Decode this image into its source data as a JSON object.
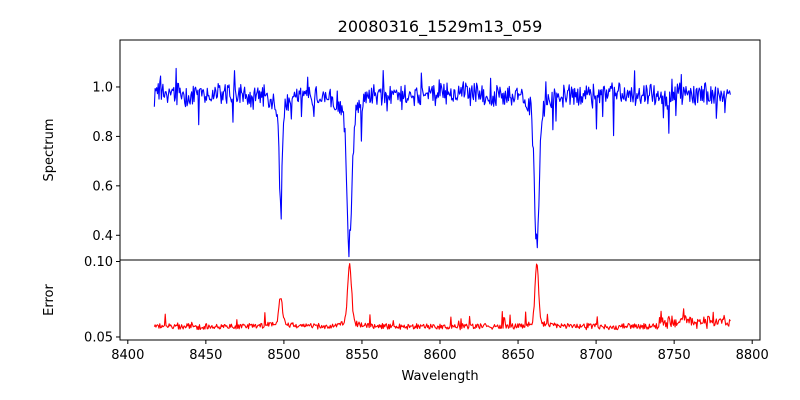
{
  "title": "20080316_1529m13_059",
  "chart_data": [
    {
      "type": "line",
      "panel": "spectrum",
      "ylabel": "Spectrum",
      "xlim": [
        8395,
        8805
      ],
      "ylim": [
        0.3,
        1.19
      ],
      "yticks": [
        0.4,
        0.6,
        0.8,
        1.0
      ],
      "ytick_labels": [
        "0.4",
        "0.6",
        "0.8",
        "1.0"
      ],
      "grid": false,
      "color": "#0000ff",
      "features": [
        {
          "x": 8498,
          "y": 0.55,
          "width": 1.0
        },
        {
          "x": 8542,
          "y": 0.35,
          "width": 1.6
        },
        {
          "x": 8662,
          "y": 0.37,
          "width": 1.5
        }
      ],
      "baseline": 0.97,
      "x_start": 8417,
      "x_end": 8786,
      "series": [
        {
          "values": []
        }
      ]
    },
    {
      "type": "line",
      "panel": "error",
      "ylabel": "Error",
      "xlabel": "Wavelength",
      "xlim": [
        8395,
        8805
      ],
      "ylim": [
        0.048,
        0.101
      ],
      "yticks": [
        0.05,
        0.1
      ],
      "ytick_labels": [
        "0.05",
        "0.10"
      ],
      "xticks": [
        8400,
        8450,
        8500,
        8550,
        8600,
        8650,
        8700,
        8750,
        8800
      ],
      "xtick_labels": [
        "8400",
        "8450",
        "8500",
        "8550",
        "8600",
        "8650",
        "8700",
        "8750",
        "8800"
      ],
      "grid": false,
      "color": "#ff0000",
      "features": [
        {
          "x": 8498,
          "y": 0.077,
          "width": 1.0
        },
        {
          "x": 8542,
          "y": 0.097,
          "width": 1.2
        },
        {
          "x": 8662,
          "y": 0.099,
          "width": 1.1
        }
      ],
      "baseline": 0.057,
      "x_start": 8417,
      "x_end": 8786,
      "series": [
        {
          "values": []
        }
      ]
    }
  ]
}
